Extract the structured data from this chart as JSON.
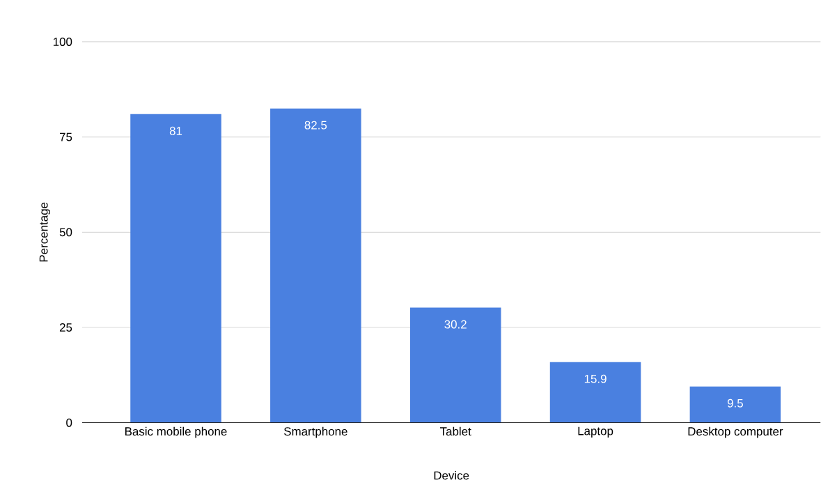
{
  "chart_data": {
    "type": "bar",
    "xlabel": "Device",
    "ylabel": "Percentage",
    "categories": [
      "Basic mobile phone",
      "Smartphone",
      "Tablet",
      "Laptop",
      "Desktop computer"
    ],
    "values": [
      81,
      82.5,
      30.2,
      15.9,
      9.5
    ],
    "color": "#4a80e0",
    "ylim": [
      0,
      100
    ],
    "yticks": [
      0,
      25,
      50,
      75,
      100
    ],
    "grid": "y",
    "data_labels": true
  }
}
